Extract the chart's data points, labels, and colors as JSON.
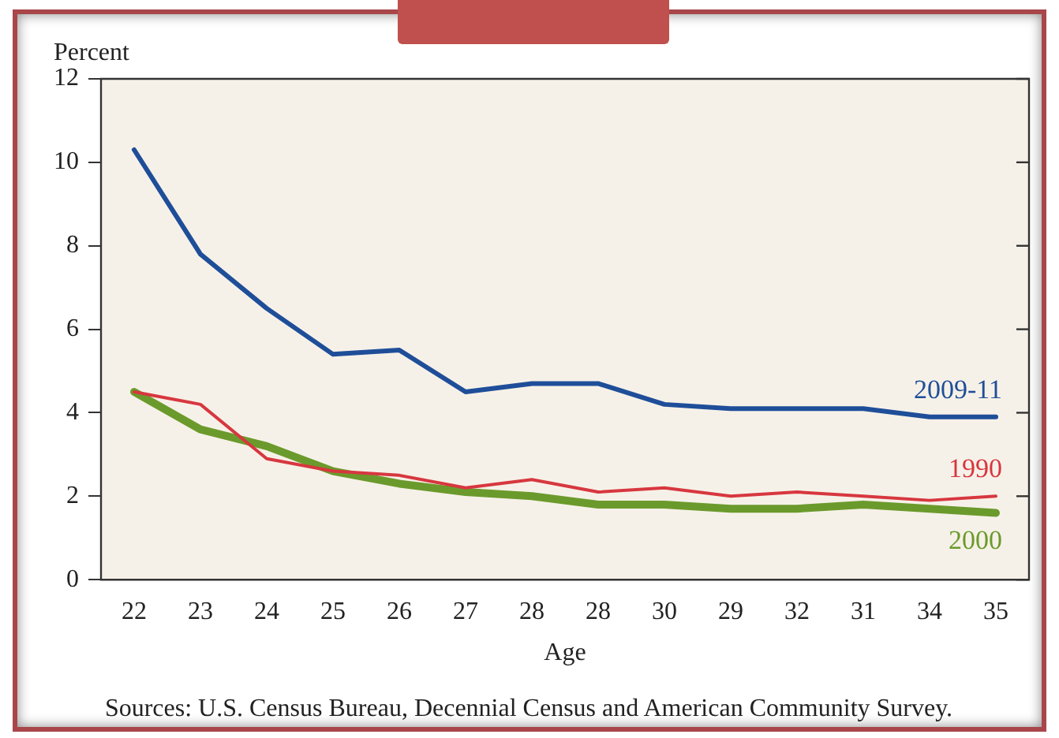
{
  "chart_data": {
    "type": "line",
    "xlabel": "Age",
    "ylabel": "Percent",
    "categories": [
      "22",
      "23",
      "24",
      "25",
      "26",
      "27",
      "28",
      "28",
      "30",
      "29",
      "32",
      "31",
      "34",
      "35"
    ],
    "series": [
      {
        "name": "2009-11",
        "color": "#1f4e99",
        "values": [
          10.3,
          7.8,
          6.5,
          5.4,
          5.5,
          4.5,
          4.7,
          4.7,
          4.2,
          4.1,
          4.1,
          4.1,
          3.9,
          3.9
        ]
      },
      {
        "name": "1990",
        "color": "#d7373f",
        "values": [
          4.5,
          4.2,
          2.9,
          2.6,
          2.5,
          2.2,
          2.4,
          2.1,
          2.2,
          2.0,
          2.1,
          2.0,
          1.9,
          2.0
        ]
      },
      {
        "name": "2000",
        "color": "#6b9a2c",
        "values": [
          4.5,
          3.6,
          3.2,
          2.6,
          2.3,
          2.1,
          2.0,
          1.8,
          1.8,
          1.7,
          1.7,
          1.8,
          1.7,
          1.6
        ]
      }
    ],
    "ylim": [
      0,
      12
    ],
    "yticks": [
      0,
      2,
      4,
      6,
      8,
      10,
      12
    ],
    "grid": false,
    "legend": false,
    "marker": "none",
    "line_style": "solid",
    "annotations": [
      "Sources: U.S. Census Bureau, Decennial Census and American Community Survey."
    ]
  }
}
